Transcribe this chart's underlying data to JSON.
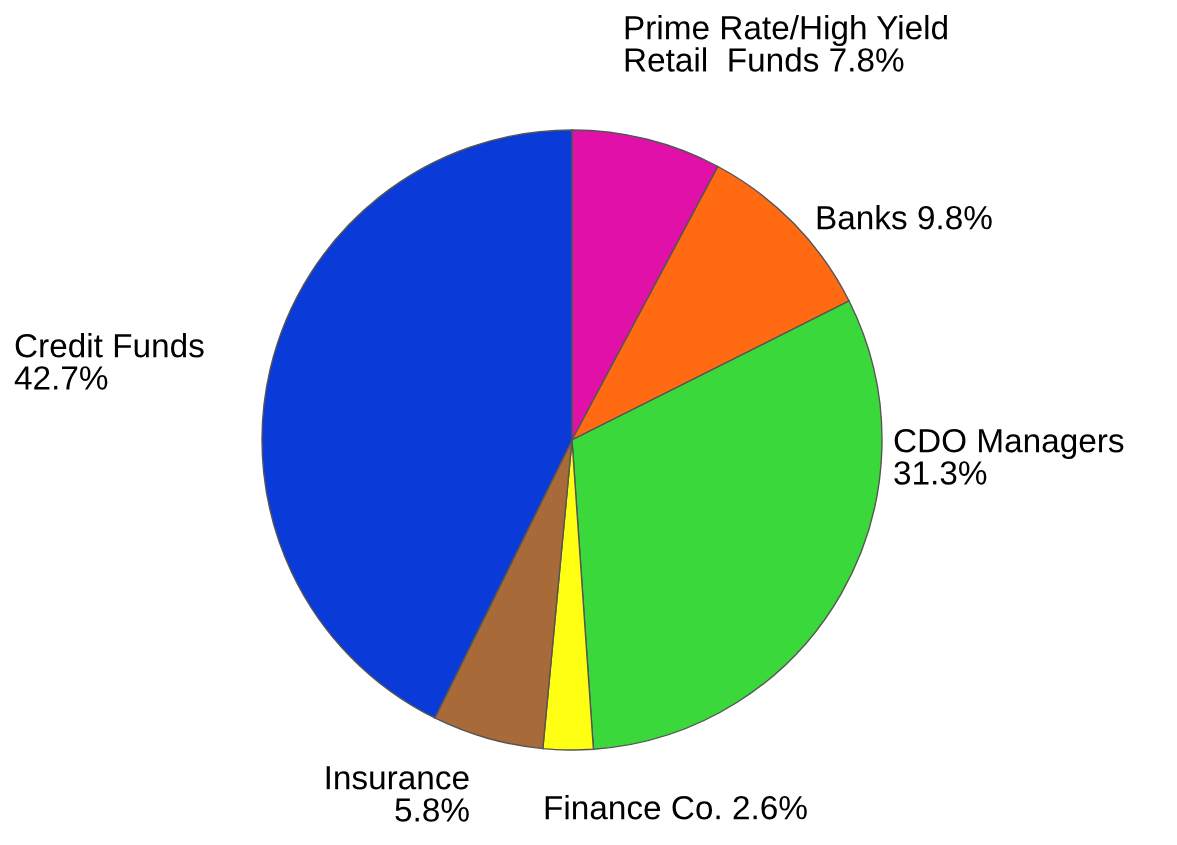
{
  "chart_data": {
    "type": "pie",
    "categories": [
      "Prime Rate/High Yield Retail  Funds",
      "Banks",
      "CDO Managers",
      "Finance Co.",
      "Insurance",
      "Credit Funds"
    ],
    "values": [
      7.8,
      9.8,
      31.3,
      2.6,
      5.8,
      42.7
    ],
    "value_labels": [
      "7.8%",
      "9.8%",
      "31.3%",
      "2.6%",
      "5.8%",
      "42.7%"
    ],
    "colors": [
      "#e010a8",
      "#ff6a12",
      "#3ad83a",
      "#ffff14",
      "#a86a38",
      "#0a3ad8"
    ]
  }
}
